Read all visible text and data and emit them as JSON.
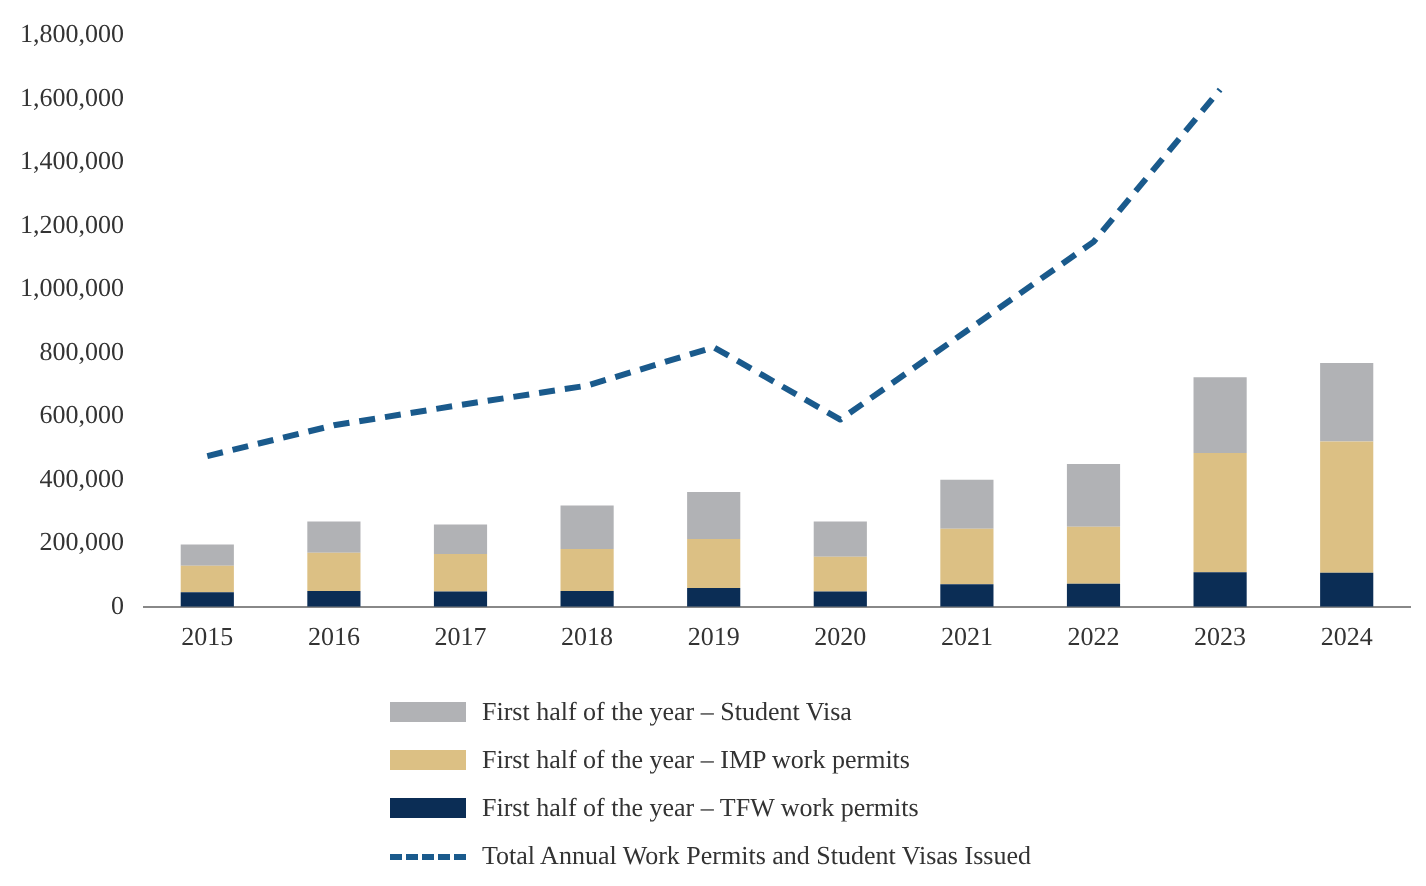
{
  "chart_data": {
    "type": "bar",
    "stacked": true,
    "categories": [
      "2015",
      "2016",
      "2017",
      "2018",
      "2019",
      "2020",
      "2021",
      "2022",
      "2023",
      "2024"
    ],
    "series": [
      {
        "name": "First half of the year – TFW work permits",
        "color": "#0b2d55",
        "values": [
          46000,
          50000,
          48000,
          50000,
          59000,
          48000,
          71000,
          73000,
          109000,
          107000
        ]
      },
      {
        "name": "First half of the year – IMP work permits",
        "color": "#dcc084",
        "values": [
          83000,
          120000,
          118000,
          132000,
          155000,
          110000,
          175000,
          179000,
          376000,
          414000
        ]
      },
      {
        "name": "First half of the year – Student Visa",
        "color": "#b1b2b5",
        "values": [
          67000,
          99000,
          93000,
          137000,
          148000,
          111000,
          154000,
          198000,
          238000,
          247000
        ]
      },
      {
        "name": "Total Annual Work Permits and Student Visas Issued",
        "type": "line",
        "color": "#1a5a8c",
        "line_style": "dashed",
        "marker": "none",
        "values": [
          475000,
          572000,
          636000,
          697000,
          818000,
          590000,
          870000,
          1150000,
          1630000,
          null
        ]
      }
    ],
    "ylim": [
      0,
      1800000
    ],
    "yticks": [
      {
        "value": 0,
        "label": "0"
      },
      {
        "value": 200000,
        "label": "200,000"
      },
      {
        "value": 400000,
        "label": "400,000"
      },
      {
        "value": 600000,
        "label": "600,000"
      },
      {
        "value": 800000,
        "label": "800,000"
      },
      {
        "value": 1000000,
        "label": "1,000,000"
      },
      {
        "value": 1200000,
        "label": "1,200,000"
      },
      {
        "value": 1400000,
        "label": "1,400,000"
      },
      {
        "value": 1600000,
        "label": "1,600,000"
      },
      {
        "value": 1800000,
        "label": "1,800,000"
      }
    ],
    "grid": false,
    "legend": "bottom"
  }
}
